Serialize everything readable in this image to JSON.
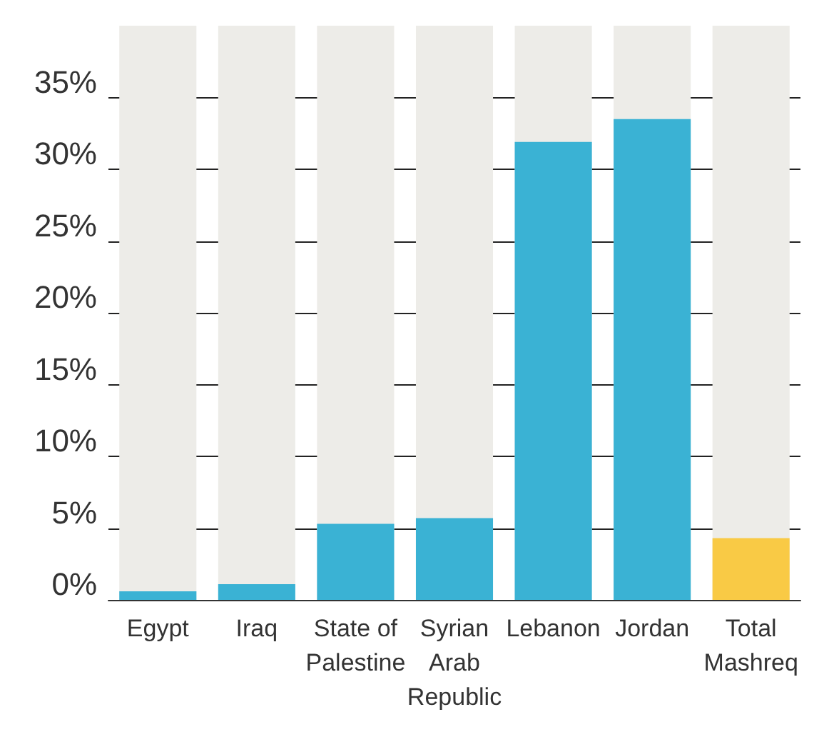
{
  "chart_data": {
    "type": "bar",
    "categories": [
      "Egypt",
      "Iraq",
      "State of\nPalestine",
      "Syrian\nArab\nRepublic",
      "Lebanon",
      "Jordan",
      "Total\nMashreq"
    ],
    "values": [
      0.6,
      1.1,
      5.3,
      5.7,
      31.9,
      33.5,
      4.3
    ],
    "colors": [
      "#3ab2d4",
      "#3ab2d4",
      "#3ab2d4",
      "#3ab2d4",
      "#3ab2d4",
      "#3ab2d4",
      "#f9ca45"
    ],
    "ylim": [
      0,
      40
    ],
    "yticks": [
      {
        "value": 0,
        "label": "0%"
      },
      {
        "value": 5,
        "label": "5%"
      },
      {
        "value": 10,
        "label": "10%"
      },
      {
        "value": 15,
        "label": "15%"
      },
      {
        "value": 20,
        "label": "20%"
      },
      {
        "value": 25,
        "label": "25%"
      },
      {
        "value": 30,
        "label": "30%"
      },
      {
        "value": 35,
        "label": "35%"
      }
    ],
    "grid": "y"
  }
}
